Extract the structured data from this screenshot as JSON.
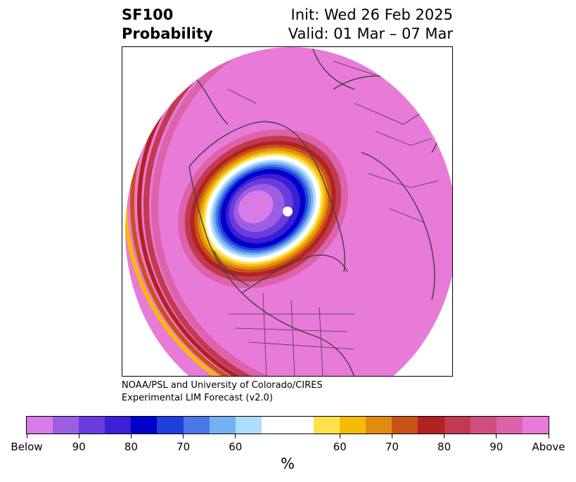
{
  "header": {
    "field": "SF100",
    "product": "Probability",
    "init": "Init: Wed 26 Feb 2025",
    "valid": "Valid: 01 Mar – 07 Mar"
  },
  "credits": {
    "line1": "NOAA/PSL and University of Colorado/CIRES",
    "line2": "Experimental LIM Forecast (v2.0)"
  },
  "colorbar": {
    "colors": [
      "#d87ae8",
      "#9b5ee3",
      "#6b3bdc",
      "#3a1fd6",
      "#0000cc",
      "#2040dc",
      "#4a78e8",
      "#74b1f2",
      "#aedcfc",
      "#ffffff",
      "#ffffff",
      "#fde24a",
      "#f6b908",
      "#e08b10",
      "#c85218",
      "#b22222",
      "#c23a50",
      "#cf5080",
      "#dc62aa",
      "#e87ad8"
    ],
    "tick_labels": [
      "Below",
      "90",
      "80",
      "70",
      "60",
      "60",
      "70",
      "80",
      "90",
      "Above"
    ],
    "unit": "%"
  },
  "map": {
    "projection": "north polar stereographic",
    "background_color": "#e87ad8",
    "negative_anomaly_center": "Arctic / Canadian Archipelago",
    "positive_edge": "Pacific / western rim"
  }
}
